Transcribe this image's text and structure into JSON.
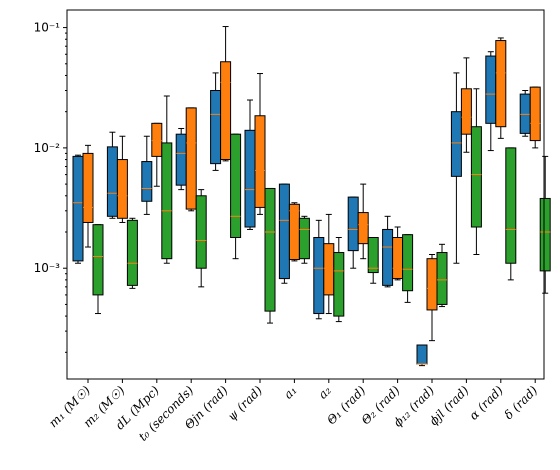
{
  "chart_data": {
    "type": "boxplot",
    "yscale": "log",
    "ylim": [
      0.00012,
      0.14
    ],
    "yticks": [
      {
        "value": 0.001,
        "label": "10⁻³"
      },
      {
        "value": 0.01,
        "label": "10⁻²"
      },
      {
        "value": 0.1,
        "label": "10⁻¹"
      }
    ],
    "grid": false,
    "legend": "none",
    "series_colors": [
      "#1f77b4",
      "#ff7f0e",
      "#2ca02c"
    ],
    "median_color": "#ff7f0e",
    "categories": [
      "m₁ (M☉)",
      "m₂ (M☉)",
      "dL (Mpc)",
      "t₀ (seconds)",
      "Θjn (rad)",
      "ψ (rad)",
      "a₁",
      "a₂",
      "Θ₁ (rad)",
      "Θ₂ (rad)",
      "ϕ₁₂ (rad)",
      "ϕjl (rad)",
      "α (rad)",
      "δ (rad)"
    ],
    "series": [
      {
        "boxes": [
          {
            "whislo": 0.0011,
            "q1": 0.00115,
            "med": 0.0035,
            "q3": 0.0085,
            "whishi": 0.0087
          },
          {
            "whislo": 0.0026,
            "q1": 0.0027,
            "med": 0.0042,
            "q3": 0.0102,
            "whishi": 0.0135
          },
          {
            "whislo": 0.0028,
            "q1": 0.0036,
            "med": 0.0046,
            "q3": 0.0077,
            "whishi": 0.0125
          },
          {
            "whislo": 0.0045,
            "q1": 0.0049,
            "med": 0.009,
            "q3": 0.013,
            "whishi": 0.0145
          },
          {
            "whislo": 0.0065,
            "q1": 0.0074,
            "med": 0.019,
            "q3": 0.03,
            "whishi": 0.042
          },
          {
            "whislo": 0.0021,
            "q1": 0.0022,
            "med": 0.0045,
            "q3": 0.014,
            "whishi": 0.025
          },
          {
            "whislo": 0.00075,
            "q1": 0.00082,
            "med": 0.0025,
            "q3": 0.005,
            "whishi": 0.005
          },
          {
            "whislo": 0.00038,
            "q1": 0.00042,
            "med": 0.001,
            "q3": 0.0018,
            "whishi": 0.0025
          },
          {
            "whislo": 0.001,
            "q1": 0.0014,
            "med": 0.0021,
            "q3": 0.0039,
            "whishi": 0.0039
          },
          {
            "whislo": 0.0007,
            "q1": 0.00072,
            "med": 0.0015,
            "q3": 0.0021,
            "whishi": 0.0027
          },
          {
            "whislo": 0.000155,
            "q1": 0.00016,
            "med": 0.00016,
            "q3": 0.00023,
            "whishi": 0.00023
          },
          {
            "whislo": 0.0011,
            "q1": 0.0058,
            "med": 0.011,
            "q3": 0.02,
            "whishi": 0.042
          },
          {
            "whislo": 0.0095,
            "q1": 0.016,
            "med": 0.028,
            "q3": 0.058,
            "whishi": 0.063
          },
          {
            "whislo": 0.0125,
            "q1": 0.0132,
            "med": 0.019,
            "q3": 0.028,
            "whishi": 0.03
          }
        ]
      },
      {
        "boxes": [
          {
            "whislo": 0.0015,
            "q1": 0.0024,
            "med": 0.0032,
            "q3": 0.009,
            "whishi": 0.0105
          },
          {
            "whislo": 0.0024,
            "q1": 0.0026,
            "med": 0.004,
            "q3": 0.008,
            "whishi": 0.0125
          },
          {
            "whislo": 0.0048,
            "q1": 0.0085,
            "med": 0.0115,
            "q3": 0.016,
            "whishi": 0.016
          },
          {
            "whislo": 0.003,
            "q1": 0.0031,
            "med": 0.011,
            "q3": 0.0215,
            "whishi": 0.0215
          },
          {
            "whislo": 0.0078,
            "q1": 0.008,
            "med": 0.035,
            "q3": 0.052,
            "whishi": 0.102
          },
          {
            "whislo": 0.0028,
            "q1": 0.0032,
            "med": 0.0065,
            "q3": 0.0185,
            "whishi": 0.0415
          },
          {
            "whislo": 0.00115,
            "q1": 0.00118,
            "med": 0.003,
            "q3": 0.0034,
            "whishi": 0.0035
          },
          {
            "whislo": 0.00042,
            "q1": 0.0006,
            "med": 0.001,
            "q3": 0.0016,
            "whishi": 0.0028
          },
          {
            "whislo": 0.0012,
            "q1": 0.0016,
            "med": 0.0023,
            "q3": 0.0029,
            "whishi": 0.005
          },
          {
            "whislo": 0.0008,
            "q1": 0.00082,
            "med": 0.001,
            "q3": 0.0018,
            "whishi": 0.0022
          },
          {
            "whislo": 0.00025,
            "q1": 0.00045,
            "med": 0.00068,
            "q3": 0.0012,
            "whishi": 0.0013
          },
          {
            "whislo": 0.0092,
            "q1": 0.013,
            "med": 0.018,
            "q3": 0.031,
            "whishi": 0.056
          },
          {
            "whislo": 0.012,
            "q1": 0.015,
            "med": 0.042,
            "q3": 0.078,
            "whishi": 0.082
          },
          {
            "whislo": 0.01,
            "q1": 0.0115,
            "med": 0.016,
            "q3": 0.032,
            "whishi": 0.032
          }
        ]
      },
      {
        "boxes": [
          {
            "whislo": 0.00042,
            "q1": 0.0006,
            "med": 0.00125,
            "q3": 0.0023,
            "whishi": 0.0023
          },
          {
            "whislo": 0.00068,
            "q1": 0.00072,
            "med": 0.0011,
            "q3": 0.0025,
            "whishi": 0.0026
          },
          {
            "whislo": 0.0011,
            "q1": 0.0012,
            "med": 0.003,
            "q3": 0.011,
            "whishi": 0.027
          },
          {
            "whislo": 0.0007,
            "q1": 0.001,
            "med": 0.0017,
            "q3": 0.004,
            "whishi": 0.0045
          },
          {
            "whislo": 0.0012,
            "q1": 0.0018,
            "med": 0.0027,
            "q3": 0.013,
            "whishi": 0.013
          },
          {
            "whislo": 0.00035,
            "q1": 0.00044,
            "med": 0.002,
            "q3": 0.0046,
            "whishi": 0.0046
          },
          {
            "whislo": 0.0011,
            "q1": 0.0012,
            "med": 0.0021,
            "q3": 0.0026,
            "whishi": 0.0027
          },
          {
            "whislo": 0.00036,
            "q1": 0.0004,
            "med": 0.00095,
            "q3": 0.00135,
            "whishi": 0.0018
          },
          {
            "whislo": 0.00075,
            "q1": 0.00092,
            "med": 0.001,
            "q3": 0.0018,
            "whishi": 0.0018
          },
          {
            "whislo": 0.00052,
            "q1": 0.00065,
            "med": 0.00098,
            "q3": 0.0019,
            "whishi": 0.0019
          },
          {
            "whislo": 0.00048,
            "q1": 0.0005,
            "med": 0.0008,
            "q3": 0.00135,
            "whishi": 0.00158
          },
          {
            "whislo": 0.0013,
            "q1": 0.0022,
            "med": 0.006,
            "q3": 0.015,
            "whishi": 0.031
          },
          {
            "whislo": 0.0008,
            "q1": 0.0011,
            "med": 0.0021,
            "q3": 0.01,
            "whishi": 0.01
          },
          {
            "whislo": 0.00062,
            "q1": 0.00095,
            "med": 0.002,
            "q3": 0.0038,
            "whishi": 0.0085
          }
        ]
      }
    ]
  }
}
